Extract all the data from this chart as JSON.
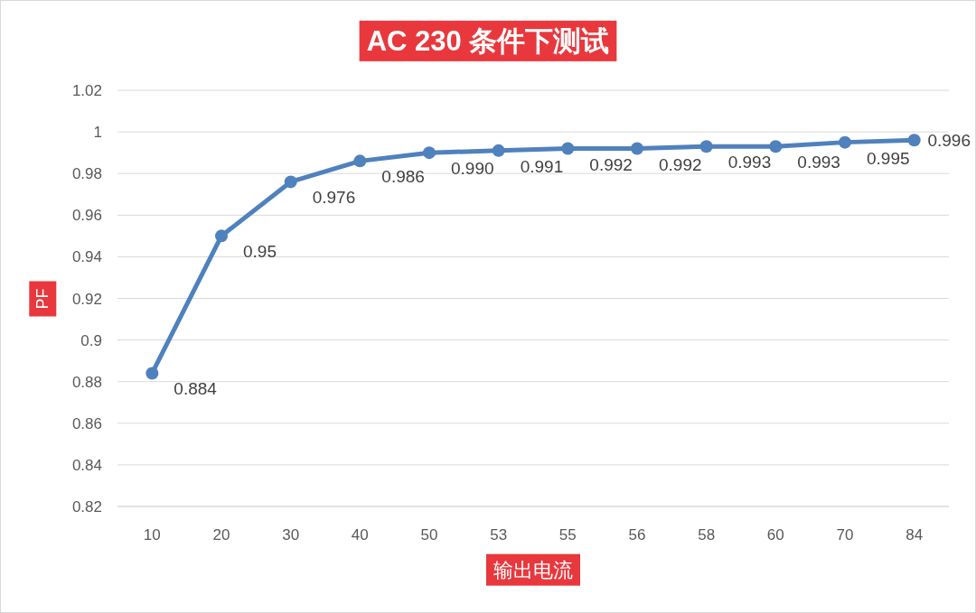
{
  "chart_data": {
    "type": "line",
    "title": "AC 230 条件下测试",
    "xlabel": "输出电流",
    "ylabel": "PF",
    "categories": [
      "10",
      "20",
      "30",
      "40",
      "50",
      "53",
      "55",
      "56",
      "58",
      "60",
      "70",
      "84"
    ],
    "series": [
      {
        "color": "#4f81bd",
        "values": [
          0.884,
          0.95,
          0.976,
          0.986,
          0.99,
          0.991,
          0.992,
          0.992,
          0.993,
          0.993,
          0.995,
          0.996
        ],
        "value_labels": [
          "0.884",
          "0.95",
          "0.976",
          "0.986",
          "0.990",
          "0.991",
          "0.992",
          "0.992",
          "0.993",
          "0.993",
          "0.995",
          "0.996"
        ]
      }
    ],
    "ylim": [
      0.82,
      1.02
    ],
    "yticks": [
      0.82,
      0.84,
      0.86,
      0.88,
      0.9,
      0.92,
      0.94,
      0.96,
      0.98,
      1,
      1.02
    ],
    "grid": "y",
    "marker": "circle",
    "line_style": "solid"
  }
}
